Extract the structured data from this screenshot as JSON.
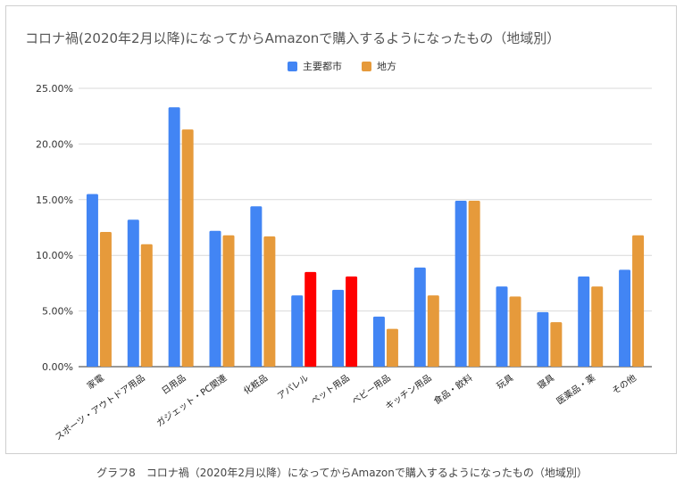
{
  "chart_data": {
    "type": "bar",
    "title": "コロナ禍(2020年2月以降)になってからAmazonで購入するようになったもの（地域別）",
    "categories": [
      "家電",
      "スポーツ・アウトドア用品",
      "日用品",
      "ガジェット・PC関連",
      "化粧品",
      "アパレル",
      "ペット用品",
      "ベビー用品",
      "キッチン用品",
      "食品・飲料",
      "玩具",
      "寝具",
      "医薬品・薬",
      "その他"
    ],
    "series": [
      {
        "name": "主要都市",
        "color": "#4285f4",
        "values": [
          15.5,
          13.2,
          23.3,
          12.2,
          14.4,
          6.4,
          6.9,
          4.5,
          8.9,
          14.9,
          7.2,
          4.9,
          8.1,
          8.7
        ]
      },
      {
        "name": "地方",
        "color": "#e69a3b",
        "values": [
          12.1,
          11.0,
          21.3,
          11.8,
          11.7,
          8.5,
          8.1,
          3.4,
          6.4,
          14.9,
          6.3,
          4.0,
          7.2,
          11.8
        ]
      }
    ],
    "highlight": {
      "categories": [
        "アパレル",
        "ペット用品"
      ],
      "series": "地方",
      "color": "#ff0000"
    },
    "yticks": [
      "0.00%",
      "5.00%",
      "10.00%",
      "15.00%",
      "20.00%",
      "25.00%"
    ],
    "ylim": [
      0,
      25
    ],
    "grid": true,
    "legend": "top-center"
  },
  "caption": "グラフ8　コロナ禍（2020年2月以降）になってからAmazonで購入するようになったもの（地域別）"
}
